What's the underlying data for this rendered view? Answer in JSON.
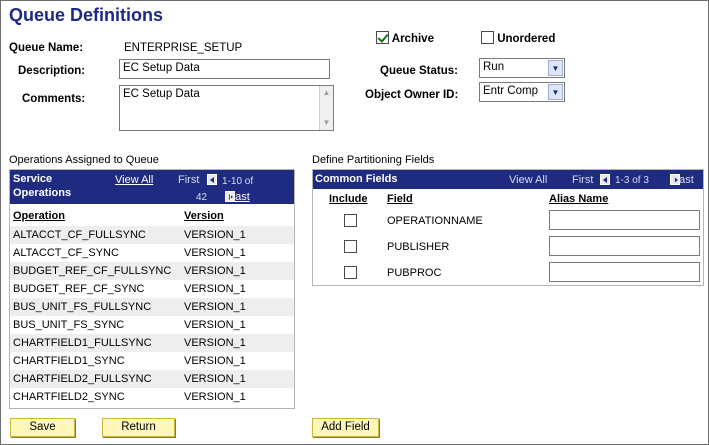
{
  "page": {
    "title": "Queue Definitions"
  },
  "form": {
    "queue_name_label": "Queue Name:",
    "queue_name_value": "ENTERPRISE_SETUP",
    "description_label": "Description:",
    "description_value": "EC Setup Data",
    "comments_label": "Comments:",
    "comments_value": "EC Setup Data",
    "archive_label": "Archive",
    "archive_checked": true,
    "unordered_label": "Unordered",
    "unordered_checked": false,
    "queue_status_label": "Queue Status:",
    "queue_status_value": "Run",
    "object_owner_label": "Object Owner ID:",
    "object_owner_value": "Entr Comp"
  },
  "operations_grid": {
    "title": "Operations Assigned to Queue",
    "header_line1": "Service",
    "header_line2": "Operations",
    "view_all": "View All",
    "first": "First",
    "range": "1-10 of",
    "total": "42",
    "last": "Last",
    "col_operation": "Operation",
    "col_version": "Version",
    "rows": [
      {
        "operation": "ALTACCT_CF_FULLSYNC",
        "version": "VERSION_1"
      },
      {
        "operation": "ALTACCT_CF_SYNC",
        "version": "VERSION_1"
      },
      {
        "operation": "BUDGET_REF_CF_FULLSYNC",
        "version": "VERSION_1"
      },
      {
        "operation": "BUDGET_REF_CF_SYNC",
        "version": "VERSION_1"
      },
      {
        "operation": "BUS_UNIT_FS_FULLSYNC",
        "version": "VERSION_1"
      },
      {
        "operation": "BUS_UNIT_FS_SYNC",
        "version": "VERSION_1"
      },
      {
        "operation": "CHARTFIELD1_FULLSYNC",
        "version": "VERSION_1"
      },
      {
        "operation": "CHARTFIELD1_SYNC",
        "version": "VERSION_1"
      },
      {
        "operation": "CHARTFIELD2_FULLSYNC",
        "version": "VERSION_1"
      },
      {
        "operation": "CHARTFIELD2_SYNC",
        "version": "VERSION_1"
      }
    ]
  },
  "partition_grid": {
    "title": "Define Partitioning Fields",
    "header": "Common Fields",
    "view_all": "View All",
    "first": "First",
    "range": "1-3 of 3",
    "last": "Last",
    "col_include": "Include",
    "col_field": "Field",
    "col_alias": "Alias Name",
    "rows": [
      {
        "field": "OPERATIONNAME",
        "include": false,
        "alias": ""
      },
      {
        "field": "PUBLISHER",
        "include": false,
        "alias": ""
      },
      {
        "field": "PUBPROC",
        "include": false,
        "alias": ""
      }
    ]
  },
  "buttons": {
    "save": "Save",
    "return": "Return",
    "add_field": "Add Field"
  }
}
